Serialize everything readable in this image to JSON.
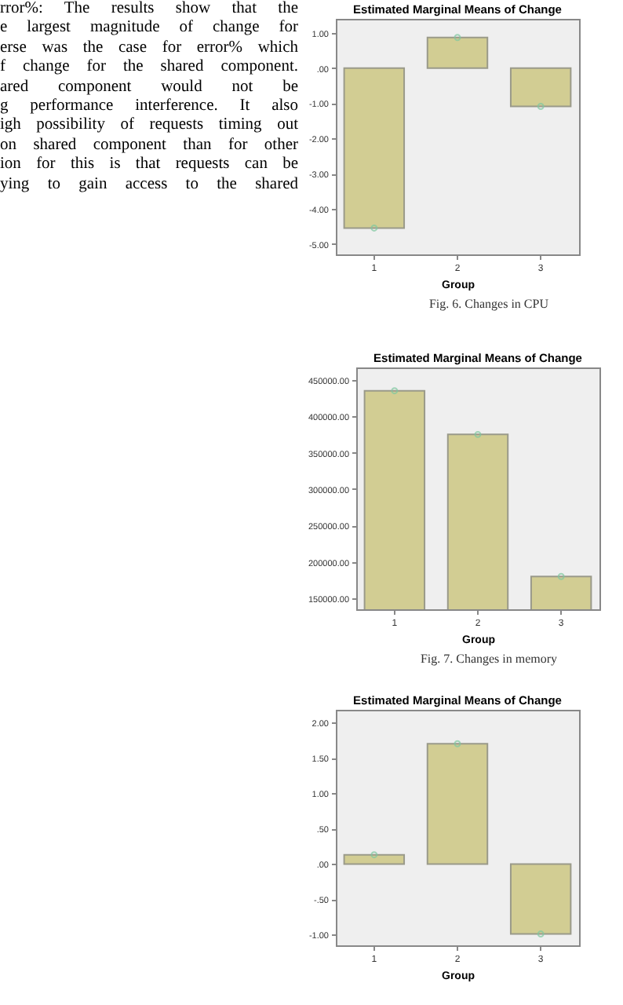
{
  "chart_data": [
    {
      "type": "other",
      "annotations": [
        "rror%: The results show that the",
        "e largest magnitude of change for",
        "erse was the case for error% which",
        "f change for the shared component.",
        "ared component would not be",
        "g performance interference. It also",
        "igh possibility of requests timing out",
        "on shared component than for other",
        "ion for this is that requests can be",
        "ying to gain access to the shared"
      ]
    },
    {
      "type": "bar",
      "title": "Estimated Marginal Means of Change",
      "xlabel": "Group",
      "categories": [
        "1",
        "2",
        "3"
      ],
      "marker": "circle",
      "series": [
        {
          "type": "bar",
          "color": "#d2cd93",
          "values": [
            -4.55,
            0.87,
            -1.09
          ]
        },
        {
          "type": "scatter",
          "color": "#7fc8a0",
          "values": [
            -4.55,
            0.87,
            -1.09
          ]
        }
      ],
      "ylim": [
        -5.3,
        1.4
      ],
      "yticks": [
        {
          "value": 1,
          "label": "1.00"
        },
        {
          "value": 0,
          "label": ".00"
        },
        {
          "value": -1,
          "label": "-1.00"
        },
        {
          "value": -2,
          "label": "-2.00"
        },
        {
          "value": -3,
          "label": "-3.00"
        },
        {
          "value": -4,
          "label": "-4.00"
        },
        {
          "value": -5,
          "label": "-5.00"
        }
      ],
      "annotations": [
        "Fig. 6. Changes in CPU"
      ]
    },
    {
      "type": "bar",
      "title": "Estimated Marginal Means of Change",
      "xlabel": "Group",
      "categories": [
        "1",
        "2",
        "3"
      ],
      "marker": "circle",
      "series": [
        {
          "type": "bar",
          "color": "#d2cd93",
          "values": [
            435000,
            375000,
            180000
          ]
        },
        {
          "type": "scatter",
          "color": "#7fc8a0",
          "values": [
            435000,
            375000,
            180000
          ]
        }
      ],
      "ylim": [
        135000,
        467000
      ],
      "yticks": [
        {
          "value": 150000,
          "label": "150000.00"
        },
        {
          "value": 200000,
          "label": "200000.00"
        },
        {
          "value": 250000,
          "label": "250000.00"
        },
        {
          "value": 300000,
          "label": "300000.00"
        },
        {
          "value": 350000,
          "label": "350000.00"
        },
        {
          "value": 400000,
          "label": "400000.00"
        },
        {
          "value": 450000,
          "label": "450000.00"
        }
      ],
      "annotations": [
        "Fig. 7. Changes in memory"
      ]
    },
    {
      "type": "bar",
      "title": "Estimated Marginal Means of Change",
      "xlabel": "Group",
      "categories": [
        "1",
        "2",
        "3"
      ],
      "marker": "circle",
      "series": [
        {
          "type": "bar",
          "color": "#d2cd93",
          "values": [
            0.13,
            1.7,
            -0.99
          ]
        },
        {
          "type": "scatter",
          "color": "#7fc8a0",
          "values": [
            0.13,
            1.7,
            -0.99
          ]
        }
      ],
      "ylim": [
        -1.15,
        2.18
      ],
      "yticks": [
        {
          "value": 2,
          "label": "2.00"
        },
        {
          "value": 1.5,
          "label": "1.50"
        },
        {
          "value": 1,
          "label": "1.00"
        },
        {
          "value": 0.5,
          "label": ".50"
        },
        {
          "value": 0,
          "label": ".00"
        },
        {
          "value": -0.5,
          "label": "-.50"
        },
        {
          "value": -1,
          "label": "-1.00"
        }
      ]
    }
  ]
}
